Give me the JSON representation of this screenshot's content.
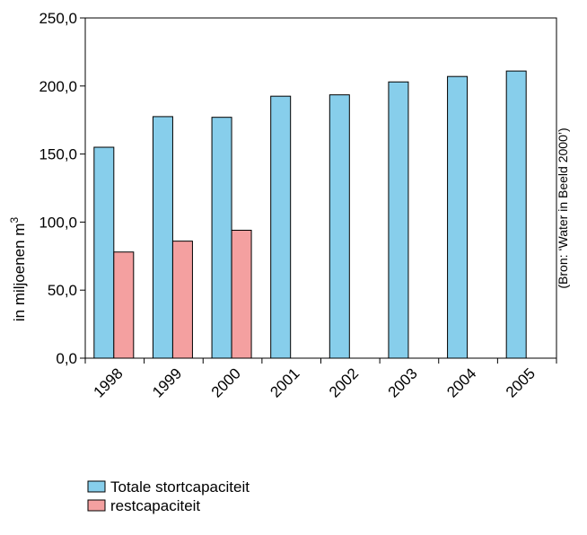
{
  "chart_data": {
    "type": "bar",
    "title": "",
    "xlabel": "",
    "ylabel": "in miljoenen m",
    "ylabel_superscript": "3",
    "ylim": [
      0,
      250
    ],
    "y_ticks": [
      "0,0",
      "50,0",
      "100,0",
      "150,0",
      "200,0",
      "250,0"
    ],
    "y_tick_values": [
      0,
      50,
      100,
      150,
      200,
      250
    ],
    "categories": [
      "1998",
      "1999",
      "2000",
      "2001",
      "2002",
      "2003",
      "2004",
      "2005"
    ],
    "series": [
      {
        "name": "Totale stortcapaciteit",
        "color": "#87CEEB",
        "values": [
          155,
          177.5,
          177,
          192.5,
          193.5,
          203,
          207,
          211
        ]
      },
      {
        "name": "restcapaciteit",
        "color": "#F4A0A0",
        "values": [
          78,
          86,
          94,
          null,
          null,
          null,
          null,
          null
        ]
      }
    ],
    "grid": false,
    "legend_placement": "bottom-left",
    "source_note": "(Bron: ‘Water in Beeld 2000’)"
  }
}
